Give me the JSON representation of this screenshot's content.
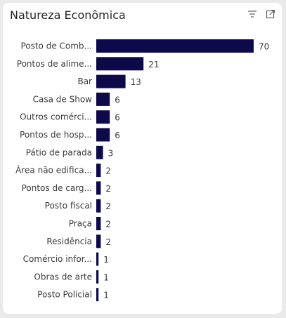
{
  "visual": {
    "title": "Natureza Econômica"
  },
  "colors": {
    "bar": "#0d0a4a",
    "text": "#3b3a39",
    "title": "#252423",
    "icon": "#605e5c"
  },
  "header_icons": [
    "filter-icon",
    "focus-mode-icon"
  ],
  "chart_data": {
    "type": "bar",
    "orientation": "horizontal",
    "categories": [
      "Posto de Comb...",
      "Pontos de alime...",
      "Bar",
      "Casa de Show",
      "Outros comérci...",
      "Pontos de hosp...",
      "Pátio de parada",
      "Área não edifica...",
      "Pontos de carg...",
      "Posto fiscal",
      "Praça",
      "Residência",
      "Comércio infor...",
      "Obras de arte",
      "Posto Policial"
    ],
    "values": [
      70,
      21,
      13,
      6,
      6,
      6,
      3,
      2,
      2,
      2,
      2,
      2,
      1,
      1,
      1
    ],
    "data_labels": [
      "70",
      "21",
      "13",
      "6",
      "6",
      "6",
      "3",
      "2",
      "2",
      "2",
      "2",
      "2",
      "1",
      "1",
      "1"
    ],
    "xlim": [
      0,
      70
    ],
    "grid": false,
    "legend": "none"
  }
}
